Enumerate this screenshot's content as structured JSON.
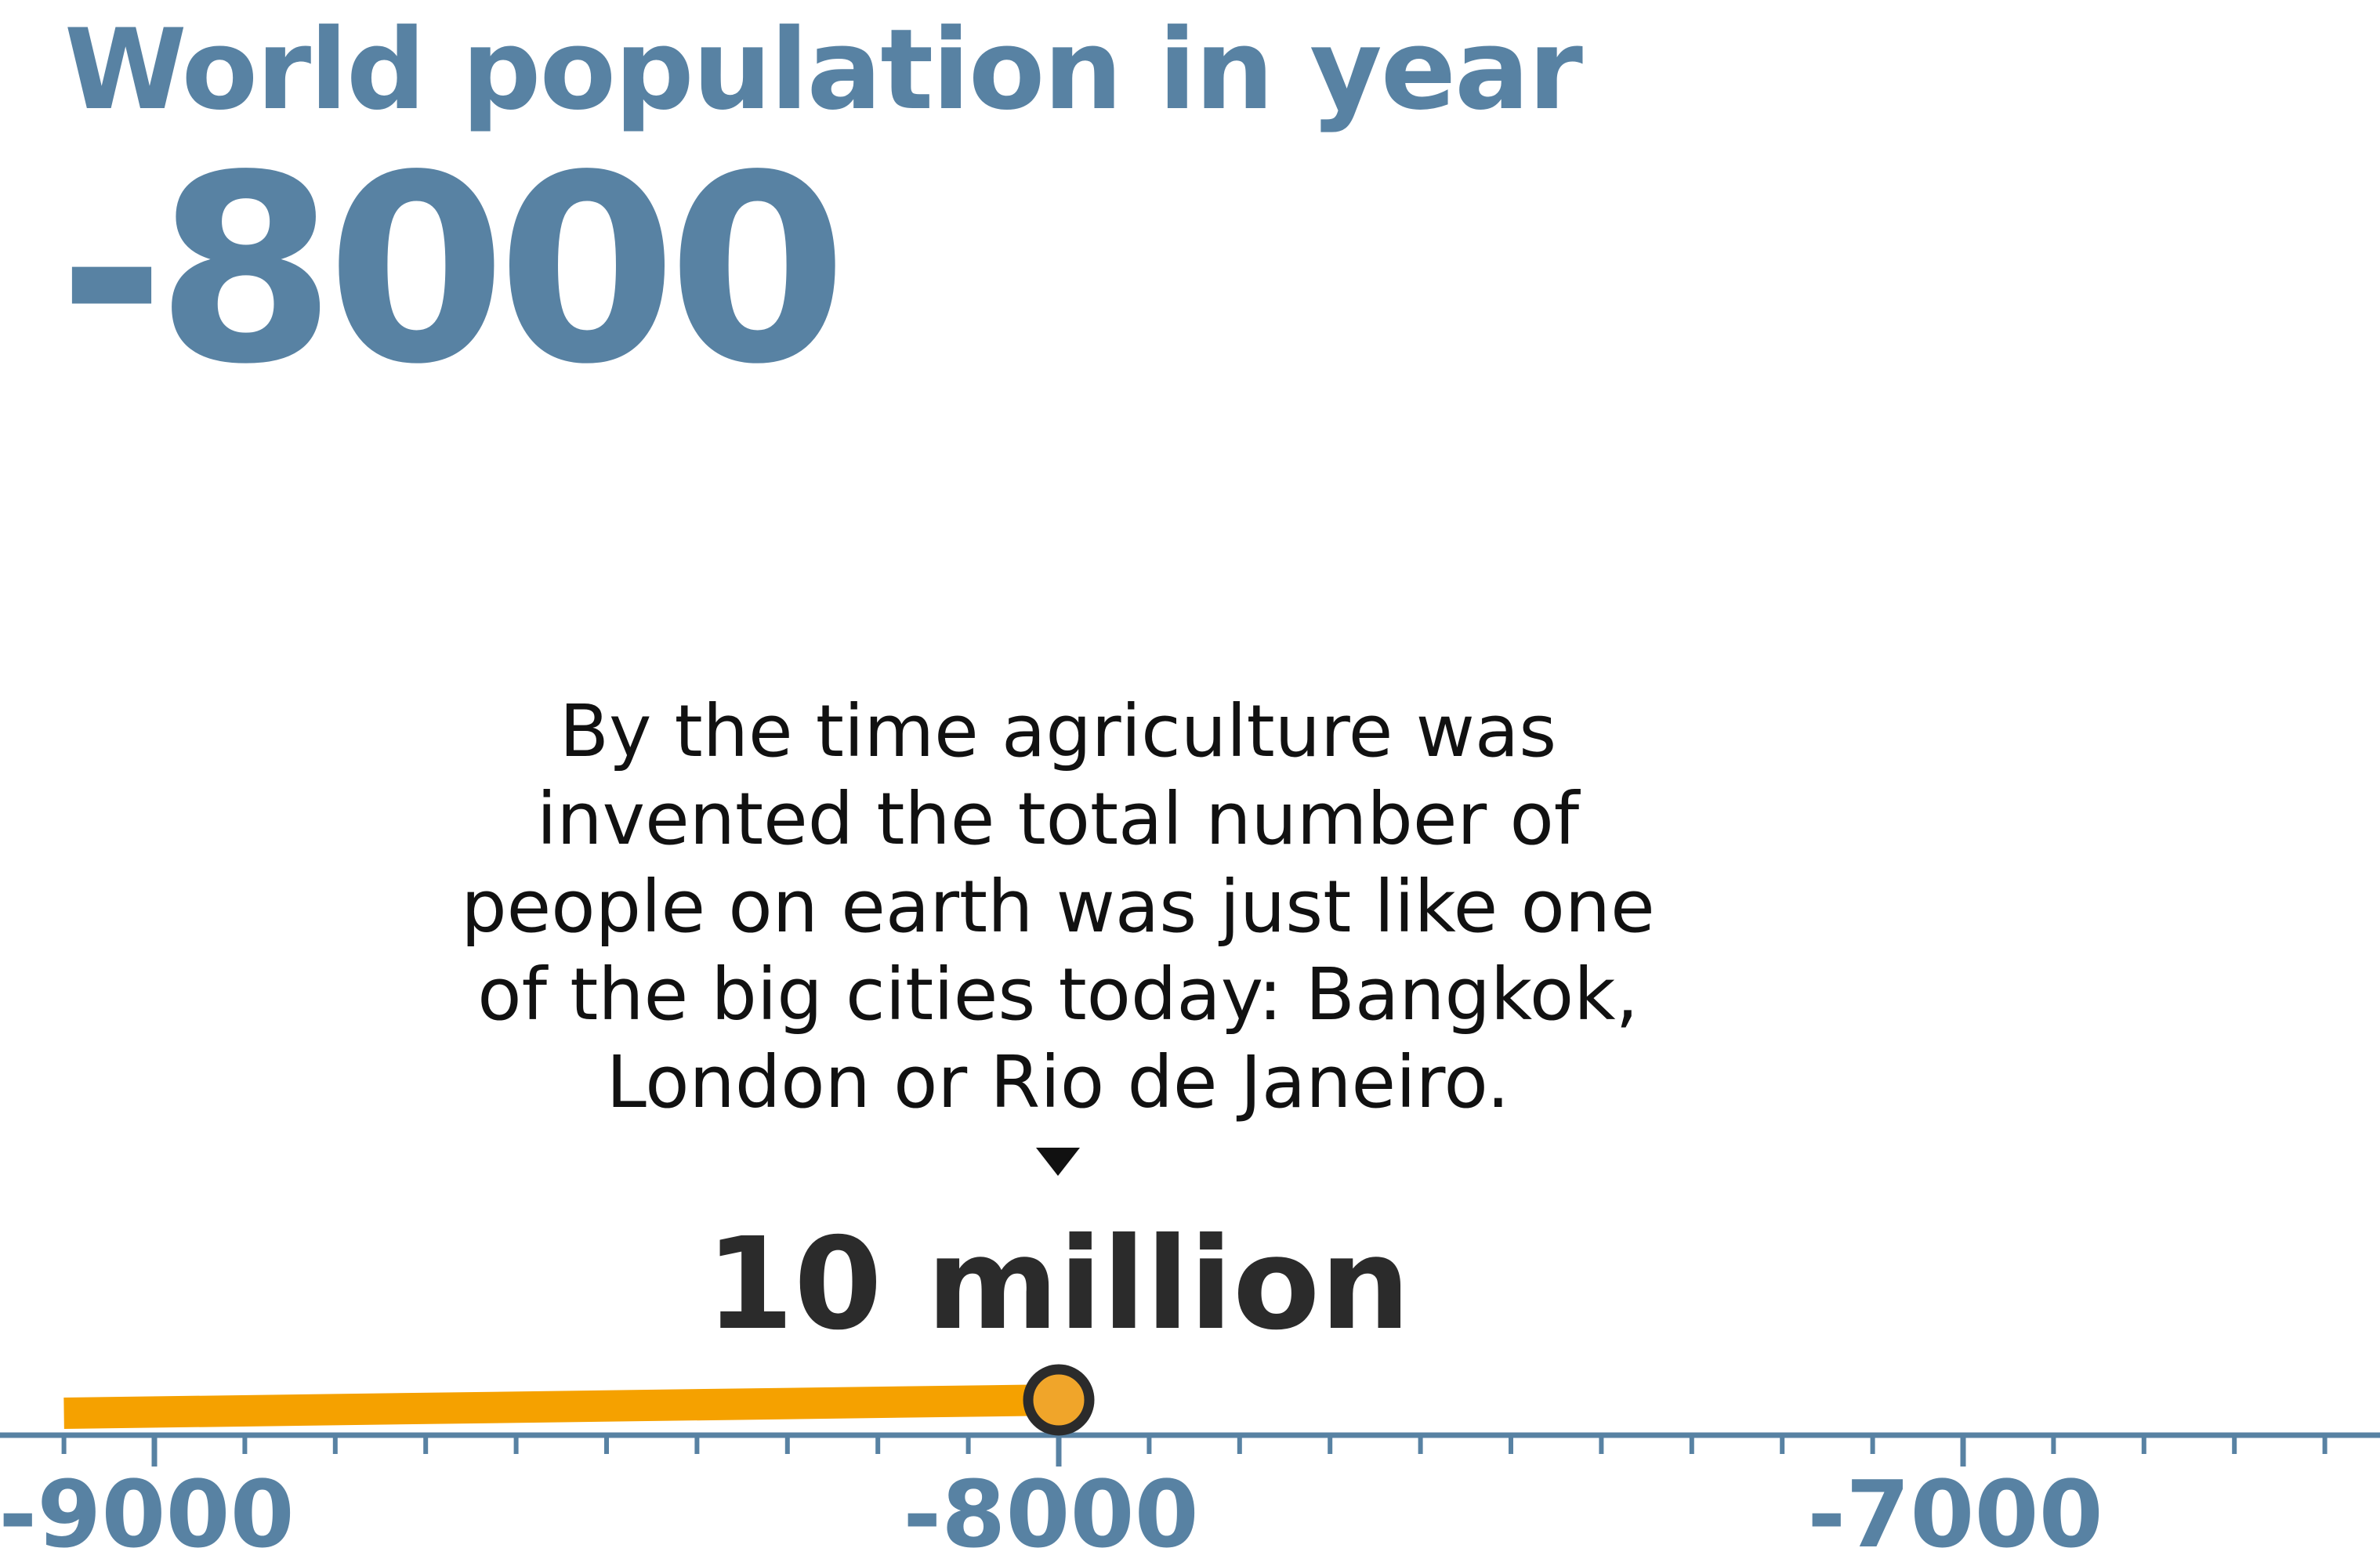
{
  "header": {
    "line1": "World population in year",
    "year": "-8000"
  },
  "annotation": {
    "lines": [
      "By the time agriculture was",
      "invented the total number of",
      "people on earth was just like one",
      "of the big cities today: Bangkok,",
      "London or Rio de Janeiro."
    ]
  },
  "current_value_label": "10 million",
  "colors": {
    "accent": "#5882a3",
    "line": "#f5a100",
    "marker_fill": "#f0a52a",
    "marker_stroke": "#2b2b2b",
    "text": "#111111"
  },
  "chart_data": {
    "type": "line",
    "title": "World population in year",
    "xlabel": "",
    "ylabel": "",
    "x_range": [
      -9100,
      -6550
    ],
    "x_ticks": [
      -9000,
      -8000,
      -7000
    ],
    "x_tick_labels": [
      "-9000",
      "-8000",
      "-7000"
    ],
    "minor_tick_step": 100,
    "series": [
      {
        "x": [
          -9100,
          -8000
        ],
        "y": [
          8,
          10
        ]
      }
    ],
    "highlight": {
      "x": -8000,
      "y": 10,
      "label": "10 million"
    },
    "grid": false
  }
}
